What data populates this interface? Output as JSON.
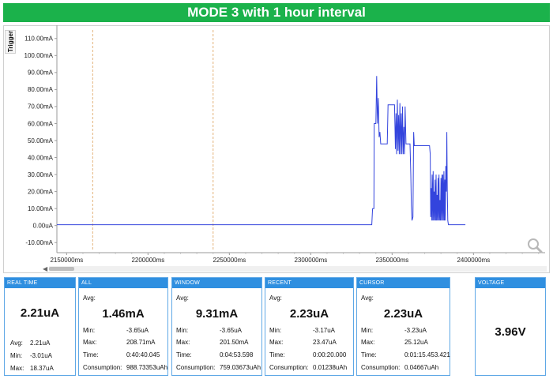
{
  "banner": {
    "title": "MODE 3 with 1 hour  interval",
    "color": "#1bb24b"
  },
  "chart": {
    "trigger_label": "Trigger",
    "y_tick_labels": [
      "110.00mA",
      "100.00mA",
      "90.00mA",
      "80.00mA",
      "70.00mA",
      "60.00mA",
      "50.00mA",
      "40.00mA",
      "30.00mA",
      "20.00mA",
      "10.00mA",
      "0.00uA",
      "-10.00mA"
    ],
    "x_tick_labels": [
      "2150000ms",
      "2200000ms",
      "2250000ms",
      "2300000ms",
      "2350000ms",
      "2400000ms"
    ],
    "line_color": "#3344dd"
  },
  "chart_data": {
    "type": "line",
    "xlabel": "",
    "ylabel": "",
    "x_unit": "ms",
    "y_unit": "mA",
    "xlim": [
      2144000,
      2444000
    ],
    "ylim": [
      -15,
      115
    ],
    "x_ticks": [
      2150000,
      2200000,
      2250000,
      2300000,
      2350000,
      2400000
    ],
    "y_ticks": [
      110,
      100,
      90,
      80,
      70,
      60,
      50,
      40,
      30,
      20,
      10,
      0,
      -10
    ],
    "markers_x": [
      2166000,
      2240000
    ],
    "series": [
      {
        "points": [
          [
            2144000,
            0.5
          ],
          [
            2337500,
            0.5
          ],
          [
            2338000,
            10
          ],
          [
            2338800,
            10
          ],
          [
            2339000,
            60
          ],
          [
            2340000,
            60
          ],
          [
            2340500,
            88
          ],
          [
            2341000,
            60
          ],
          [
            2341500,
            75
          ],
          [
            2342000,
            52
          ],
          [
            2342500,
            55
          ],
          [
            2343000,
            48
          ],
          [
            2347000,
            48
          ],
          [
            2347500,
            71
          ],
          [
            2351500,
            71
          ],
          [
            2352000,
            45
          ],
          [
            2352400,
            66
          ],
          [
            2352800,
            42
          ],
          [
            2353200,
            74
          ],
          [
            2353600,
            44
          ],
          [
            2354000,
            65
          ],
          [
            2354400,
            42
          ],
          [
            2354800,
            72
          ],
          [
            2355200,
            42
          ],
          [
            2355600,
            66
          ],
          [
            2356000,
            42
          ],
          [
            2356400,
            70
          ],
          [
            2356800,
            42
          ],
          [
            2357200,
            58
          ],
          [
            2357600,
            42
          ],
          [
            2358000,
            70
          ],
          [
            2358500,
            48
          ],
          [
            2361000,
            48
          ],
          [
            2361500,
            30
          ],
          [
            2361800,
            12
          ],
          [
            2362200,
            3
          ],
          [
            2362800,
            5
          ],
          [
            2363200,
            55
          ],
          [
            2363600,
            47
          ],
          [
            2365000,
            47
          ],
          [
            2373000,
            47
          ],
          [
            2373400,
            42
          ],
          [
            2373700,
            5
          ],
          [
            2374000,
            22
          ],
          [
            2374300,
            3
          ],
          [
            2374600,
            30
          ],
          [
            2374900,
            3
          ],
          [
            2375200,
            32
          ],
          [
            2375500,
            3
          ],
          [
            2375800,
            20
          ],
          [
            2376100,
            3
          ],
          [
            2376400,
            27
          ],
          [
            2376700,
            3
          ],
          [
            2377000,
            30
          ],
          [
            2377300,
            3
          ],
          [
            2377600,
            18
          ],
          [
            2377900,
            3
          ],
          [
            2378200,
            28
          ],
          [
            2378500,
            3
          ],
          [
            2378800,
            30
          ],
          [
            2379100,
            3
          ],
          [
            2379400,
            15
          ],
          [
            2379700,
            3
          ],
          [
            2380000,
            28
          ],
          [
            2380300,
            3
          ],
          [
            2380600,
            30
          ],
          [
            2380900,
            3
          ],
          [
            2381200,
            30
          ],
          [
            2381500,
            3
          ],
          [
            2381800,
            32
          ],
          [
            2382100,
            3
          ],
          [
            2382400,
            27
          ],
          [
            2382700,
            3
          ],
          [
            2383000,
            35
          ],
          [
            2383300,
            20
          ],
          [
            2383600,
            55
          ],
          [
            2383900,
            20
          ],
          [
            2384200,
            3
          ],
          [
            2384600,
            0.5
          ],
          [
            2395000,
            0.5
          ]
        ]
      }
    ]
  },
  "panels": {
    "realtime": {
      "header": "REAL TIME",
      "value": "2.21uA",
      "avg_label": "Avg:",
      "avg": "2.21uA",
      "min_label": "Min:",
      "min": "-3.01uA",
      "max_label": "Max:",
      "max": "18.37uA"
    },
    "all": {
      "header": "ALL",
      "avg_label": "Avg:",
      "value": "1.46mA",
      "min_label": "Min:",
      "min": "-3.65uA",
      "max_label": "Max:",
      "max": "208.71mA",
      "time_label": "Time:",
      "time": "0:40:40.045",
      "cons_label": "Consumption:",
      "cons": "988.73353uAh"
    },
    "window": {
      "header": "WINDOW",
      "avg_label": "Avg:",
      "value": "9.31mA",
      "min_label": "Min:",
      "min": "-3.65uA",
      "max_label": "Max:",
      "max": "201.50mA",
      "time_label": "Time:",
      "time": "0:04:53.598",
      "cons_label": "Consumption:",
      "cons": "759.03673uAh"
    },
    "recent": {
      "header": "RECENT",
      "avg_label": "Avg:",
      "value": "2.23uA",
      "min_label": "Min:",
      "min": "-3.17uA",
      "max_label": "Max:",
      "max": "23.47uA",
      "time_label": "Time:",
      "time": "0:00:20.000",
      "cons_label": "Consumption:",
      "cons": "0.01238uAh"
    },
    "cursor": {
      "header": "CURSOR",
      "avg_label": "Avg:",
      "value": "2.23uA",
      "min_label": "Min:",
      "min": "-3.23uA",
      "max_label": "Max:",
      "max": "25.12uA",
      "time_label": "Time:",
      "time": "0:01:15.453.421",
      "cons_label": "Consumption:",
      "cons": "0.04667uAh"
    },
    "voltage": {
      "header": "VOLTAGE",
      "value": "3.96V"
    }
  }
}
